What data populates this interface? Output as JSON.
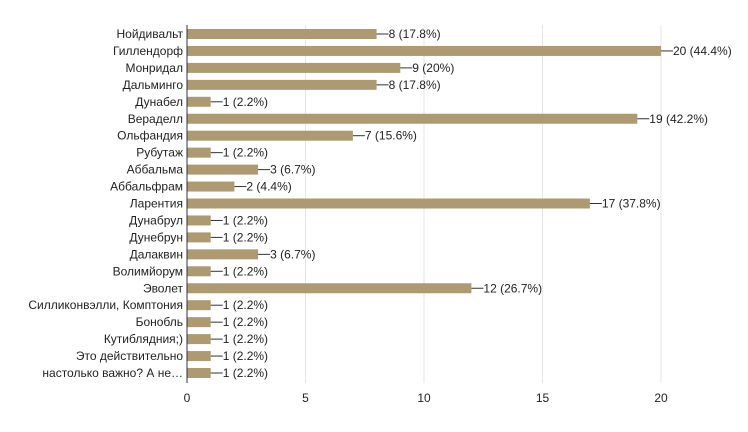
{
  "chart_data": {
    "type": "bar",
    "orientation": "horizontal",
    "grid": true,
    "xlim": [
      0,
      20
    ],
    "x_ticks": [
      "0",
      "5",
      "10",
      "15",
      "20"
    ],
    "bar_color": "#ad9a72",
    "categories": [
      "Нойдивальт",
      "Гиллендорф",
      "Монридал",
      "Дальминго",
      "Дунабел",
      "Вераделл",
      "Ольфандия",
      "Рубутаж",
      "Аббальма",
      "Аббальфрам",
      "Ларентия",
      "Дунабрул",
      "Дунебрун",
      "Далаквин",
      "Волимйорум",
      "Эволет",
      "Силликонвэлли, Комптония",
      "Бонобль",
      "Кутиблядния;)",
      "",
      "Это действительно\nнастолько важно? А не…"
    ],
    "values": [
      8,
      20,
      9,
      8,
      1,
      19,
      7,
      1,
      3,
      2,
      17,
      1,
      1,
      3,
      1,
      12,
      1,
      1,
      1,
      1,
      1
    ],
    "value_labels": [
      "8 (17.8%)",
      "20 (44.4%)",
      "9 (20%)",
      "8 (17.8%)",
      "1 (2.2%)",
      "19 (42.2%)",
      "7 (15.6%)",
      "1 (2.2%)",
      "3 (6.7%)",
      "2 (4.4%)",
      "17 (37.8%)",
      "1 (2.2%)",
      "1 (2.2%)",
      "3 (6.7%)",
      "1 (2.2%)",
      "12 (26.7%)",
      "1 (2.2%)",
      "1 (2.2%)",
      "1 (2.2%)",
      "1 (2.2%)",
      "1 (2.2%)"
    ]
  }
}
